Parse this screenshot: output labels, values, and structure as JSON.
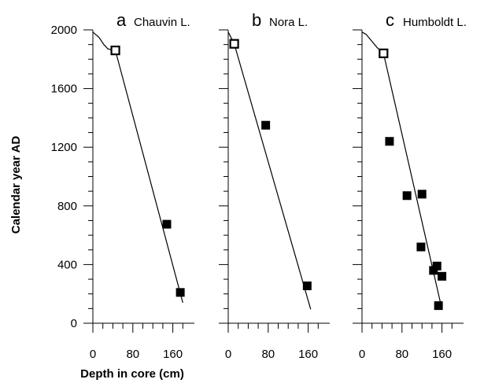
{
  "y_axis": {
    "label": "Calendar year AD",
    "ticks": [
      "0",
      "400",
      "800",
      "1200",
      "1600",
      "2000"
    ]
  },
  "x_axis": {
    "label": "Depth in core (cm)",
    "ticks": [
      "0",
      "80",
      "160"
    ]
  },
  "chart_data": [
    {
      "type": "scatter",
      "panel_letter": "a",
      "title": "Chauvin L.",
      "x_range": [
        0,
        200
      ],
      "y_range": [
        0,
        2000
      ],
      "open_points": [
        {
          "x": 45,
          "y": 1860
        }
      ],
      "filled_points": [
        {
          "x": 148,
          "y": 675
        },
        {
          "x": 175,
          "y": 210
        }
      ],
      "curve": [
        [
          0,
          1985
        ],
        [
          12,
          1950
        ],
        [
          22,
          1900
        ],
        [
          30,
          1870
        ],
        [
          45,
          1860
        ],
        [
          180,
          140
        ]
      ],
      "x_ticks": [
        0,
        80,
        160
      ],
      "y_ticks": [
        0,
        400,
        800,
        1200,
        1600,
        2000
      ]
    },
    {
      "type": "scatter",
      "panel_letter": "b",
      "title": "Nora L.",
      "x_range": [
        0,
        200
      ],
      "y_range": [
        0,
        2000
      ],
      "open_points": [
        {
          "x": 12,
          "y": 1905
        }
      ],
      "filled_points": [
        {
          "x": 75,
          "y": 1350
        },
        {
          "x": 158,
          "y": 255
        }
      ],
      "curve": [
        [
          0,
          1985
        ],
        [
          12,
          1905
        ],
        [
          165,
          95
        ]
      ],
      "x_ticks": [
        0,
        80,
        160
      ],
      "y_ticks": [
        0,
        400,
        800,
        1200,
        1600,
        2000
      ]
    },
    {
      "type": "scatter",
      "panel_letter": "c",
      "title": "Humboldt L.",
      "x_range": [
        0,
        200
      ],
      "y_range": [
        0,
        2000
      ],
      "open_points": [
        {
          "x": 43,
          "y": 1840
        }
      ],
      "filled_points": [
        {
          "x": 55,
          "y": 1240
        },
        {
          "x": 90,
          "y": 870
        },
        {
          "x": 120,
          "y": 880
        },
        {
          "x": 118,
          "y": 520
        },
        {
          "x": 143,
          "y": 360
        },
        {
          "x": 150,
          "y": 390
        },
        {
          "x": 160,
          "y": 320
        },
        {
          "x": 153,
          "y": 120
        }
      ],
      "curve": [
        [
          0,
          1985
        ],
        [
          8,
          1970
        ],
        [
          18,
          1930
        ],
        [
          30,
          1880
        ],
        [
          43,
          1840
        ],
        [
          160,
          95
        ]
      ],
      "x_ticks": [
        0,
        80,
        160
      ],
      "y_ticks": [
        0,
        400,
        800,
        1200,
        1600,
        2000
      ]
    }
  ]
}
